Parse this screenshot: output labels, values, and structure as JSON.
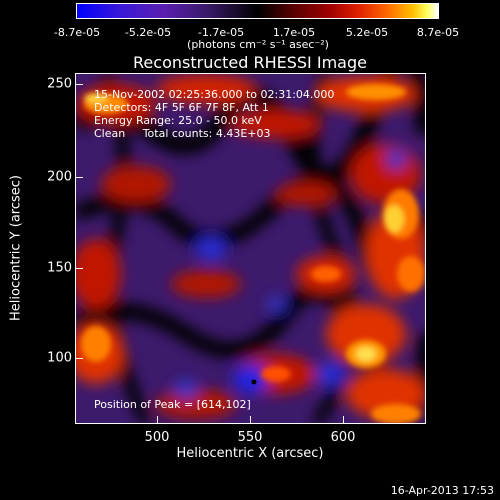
{
  "colorbar": {
    "ticks": [
      "-8.7e-05",
      "-5.2e-05",
      "-1.7e-05",
      "1.7e-05",
      "5.2e-05",
      "8.7e-05"
    ],
    "units": "(photons cm⁻² s⁻¹ asec⁻²)"
  },
  "title": "Reconstructed RHESSI Image",
  "info": {
    "time_range": "15-Nov-2002 02:25:36.000 to 02:31:04.000",
    "detectors": "Detectors: 4F 5F 6F 7F 8F, Att 1",
    "energy": "Energy Range: 25.0 - 50.0 keV",
    "clean": "Clean     Total counts: 4.43E+03",
    "peak": "Position of Peak = [614,102]"
  },
  "axes": {
    "x_ticks": [
      "500",
      "550",
      "600"
    ],
    "y_ticks": [
      "250",
      "200",
      "150",
      "100"
    ],
    "xlabel": "Heliocentric X (arcsec)",
    "ylabel": "Heliocentric Y (arcsec)",
    "x_range": [
      455,
      645
    ],
    "y_range": [
      65,
      255
    ]
  },
  "timestamp": "16-Apr-2013 17:53",
  "colors": {
    "axis": "#ffffff",
    "background": "#000000"
  }
}
